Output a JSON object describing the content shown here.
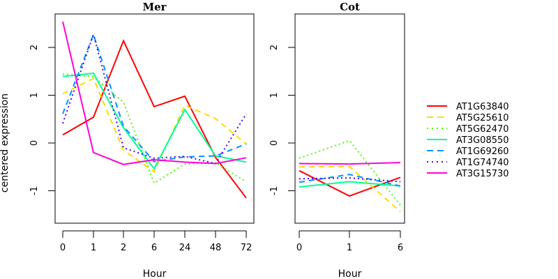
{
  "chart_data": [
    {
      "type": "line",
      "title": "Mer",
      "xlabel": "Hour",
      "ylabel": "centered expression",
      "x": [
        "0",
        "1",
        "2",
        "6",
        "24",
        "48",
        "72"
      ],
      "ylim": [
        -1.7,
        2.7
      ],
      "yticks": [
        -1,
        0,
        1,
        2
      ],
      "grid": false,
      "series": [
        {
          "name": "AT1G63840",
          "color": "#FF0000",
          "lty": "solid",
          "values": [
            0.17,
            0.54,
            2.14,
            0.76,
            0.98,
            -0.3,
            -1.15
          ]
        },
        {
          "name": "AT5G25610",
          "color": "#FFDB00",
          "lty": "dashed",
          "values": [
            1.03,
            1.35,
            -0.15,
            -0.6,
            0.79,
            0.51,
            -0.02
          ]
        },
        {
          "name": "AT5G62470",
          "color": "#49FF00",
          "lty": "dotted",
          "values": [
            1.44,
            1.39,
            0.85,
            -0.84,
            -0.44,
            -0.42,
            -0.81
          ]
        },
        {
          "name": "AT3G08550",
          "color": "#00FF92",
          "lty": "solid",
          "values": [
            1.39,
            1.46,
            0.32,
            -0.54,
            0.7,
            -0.27,
            -0.4
          ]
        },
        {
          "name": "AT1G69260",
          "color": "#0092FF",
          "lty": "dashed",
          "values": [
            0.61,
            2.27,
            0.35,
            -0.39,
            -0.29,
            -0.27,
            -0.02
          ]
        },
        {
          "name": "AT1G74740",
          "color": "#4900FF",
          "lty": "dotted",
          "values": [
            0.41,
            2.27,
            -0.1,
            -0.32,
            -0.28,
            -0.43,
            0.61
          ]
        },
        {
          "name": "AT3G15730",
          "color": "#FF00DB",
          "lty": "solid",
          "values": [
            2.54,
            -0.2,
            -0.45,
            -0.35,
            -0.4,
            -0.43,
            -0.31
          ]
        }
      ]
    },
    {
      "type": "line",
      "title": "Cot",
      "xlabel": "Hour",
      "ylabel": "",
      "x": [
        "0",
        "1",
        "6"
      ],
      "ylim": [
        -1.7,
        2.7
      ],
      "yticks": [
        -1,
        0,
        1,
        2
      ],
      "grid": false,
      "series": [
        {
          "name": "AT1G63840",
          "color": "#FF0000",
          "lty": "solid",
          "values": [
            -0.58,
            -1.11,
            -0.72
          ]
        },
        {
          "name": "AT5G25610",
          "color": "#FFDB00",
          "lty": "dashed",
          "values": [
            -0.5,
            -0.49,
            -1.44
          ]
        },
        {
          "name": "AT5G62470",
          "color": "#49FF00",
          "lty": "dotted",
          "values": [
            -0.32,
            0.05,
            -1.3
          ]
        },
        {
          "name": "AT3G08550",
          "color": "#00FF92",
          "lty": "solid",
          "values": [
            -0.92,
            -0.81,
            -0.9
          ]
        },
        {
          "name": "AT1G69260",
          "color": "#0092FF",
          "lty": "dashed",
          "values": [
            -0.82,
            -0.66,
            -0.9
          ]
        },
        {
          "name": "AT1G74740",
          "color": "#4900FF",
          "lty": "dotted",
          "values": [
            -0.75,
            -0.73,
            -0.81
          ]
        },
        {
          "name": "AT3G15730",
          "color": "#FF00DB",
          "lty": "solid",
          "values": [
            -0.43,
            -0.44,
            -0.41
          ]
        }
      ]
    }
  ],
  "legend": {
    "placement": "right",
    "entries": [
      {
        "label": "AT1G63840",
        "color": "#FF0000",
        "lty": "solid"
      },
      {
        "label": "AT5G25610",
        "color": "#FFDB00",
        "lty": "dashed"
      },
      {
        "label": "AT5G62470",
        "color": "#49FF00",
        "lty": "dotted"
      },
      {
        "label": "AT3G08550",
        "color": "#00FF92",
        "lty": "solid"
      },
      {
        "label": "AT1G69260",
        "color": "#0092FF",
        "lty": "dashed"
      },
      {
        "label": "AT1G74740",
        "color": "#4900FF",
        "lty": "dotted"
      },
      {
        "label": "AT3G15730",
        "color": "#FF00DB",
        "lty": "solid"
      }
    ]
  }
}
